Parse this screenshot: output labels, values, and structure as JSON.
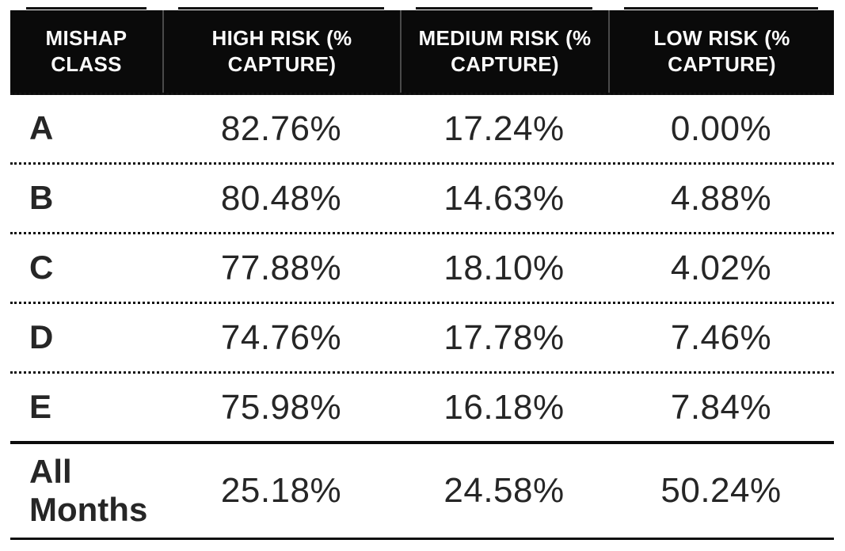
{
  "colors": {
    "header-bg": "#0a0a0a",
    "header-text": "#fafafa",
    "body-text": "#262626",
    "seam": "#4a4a4a",
    "line": "#0c0c0c",
    "page-bg": "#ffffff"
  },
  "chart_data": {
    "type": "table",
    "columns": [
      "MISHAP CLASS",
      "HIGH RISK (% CAPTURE)",
      "MEDIUM RISK (% CAPTURE)",
      "LOW RISK (% CAPTURE)"
    ],
    "rows": [
      [
        "A",
        "82.76%",
        "17.24%",
        "0.00%"
      ],
      [
        "B",
        "80.48%",
        "14.63%",
        "4.88%"
      ],
      [
        "C",
        "77.88%",
        "18.10%",
        "4.02%"
      ],
      [
        "D",
        "74.76%",
        "17.78%",
        "7.46%"
      ],
      [
        "E",
        "75.98%",
        "16.18%",
        "7.84%"
      ],
      [
        "All Months",
        "25.18%",
        "24.58%",
        "50.24%"
      ]
    ],
    "layout": {
      "header_style": "black background, white bold text, centered",
      "row_separators": "dotted",
      "total_row_separators": "solid",
      "value_alignment": "center",
      "label_alignment": "left"
    }
  }
}
